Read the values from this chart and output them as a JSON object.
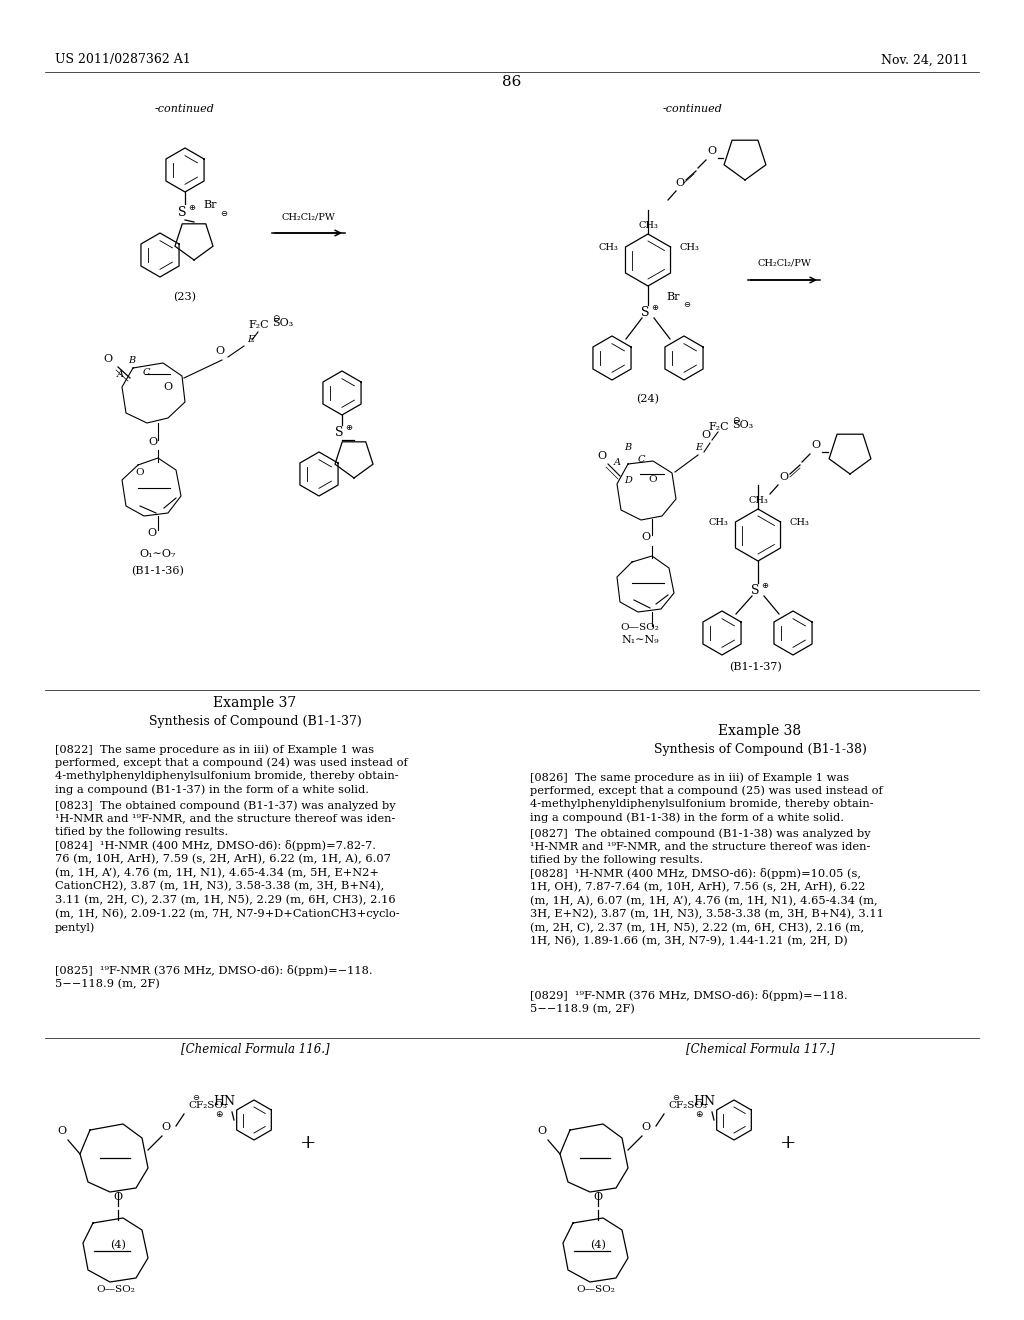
{
  "page_number": "86",
  "header_left": "US 2011/0287362 A1",
  "header_right": "Nov. 24, 2011",
  "background_color": "#ffffff",
  "text_color": "#000000",
  "para_0822": "[0822]  The same procedure as in iii) of Example 1 was\nperformed, except that a compound (24) was used instead of\n4-methylphenyldiphenylsulfonium bromide, thereby obtain-\ning a compound (B1-1-37) in the form of a white solid.",
  "para_0823": "[0823]  The obtained compound (B1-1-37) was analyzed by\n¹H-NMR and ¹⁹F-NMR, and the structure thereof was iden-\ntified by the following results.",
  "para_0824": "[0824]  ¹H-NMR (400 MHz, DMSO-d6): δ(ppm)=7.82-7.\n76 (m, 10H, ArH), 7.59 (s, 2H, ArH), 6.22 (m, 1H, A), 6.07\n(m, 1H, A’), 4.76 (m, 1H, N1), 4.65-4.34 (m, 5H, E+N2+\nCationCH2), 3.87 (m, 1H, N3), 3.58-3.38 (m, 3H, B+N4),\n3.11 (m, 2H, C), 2.37 (m, 1H, N5), 2.29 (m, 6H, CH3), 2.16\n(m, 1H, N6), 2.09-1.22 (m, 7H, N7-9+D+CationCH3+cyclo-\npentyl)",
  "para_0825": "[0825]  ¹⁹F-NMR (376 MHz, DMSO-d6): δ(ppm)=−118.\n5−−118.9 (m, 2F)",
  "para_0826": "[0826]  The same procedure as in iii) of Example 1 was\nperformed, except that a compound (25) was used instead of\n4-methylphenyldiphenylsulfonium bromide, thereby obtain-\ning a compound (B1-1-38) in the form of a white solid.",
  "para_0827": "[0827]  The obtained compound (B1-1-38) was analyzed by\n¹H-NMR and ¹⁹F-NMR, and the structure thereof was iden-\ntified by the following results.",
  "para_0828": "[0828]  ¹H-NMR (400 MHz, DMSO-d6): δ(ppm)=10.05 (s,\n1H, OH), 7.87-7.64 (m, 10H, ArH), 7.56 (s, 2H, ArH), 6.22\n(m, 1H, A), 6.07 (m, 1H, A’), 4.76 (m, 1H, N1), 4.65-4.34 (m,\n3H, E+N2), 3.87 (m, 1H, N3), 3.58-3.38 (m, 3H, B+N4), 3.11\n(m, 2H, C), 2.37 (m, 1H, N5), 2.22 (m, 6H, CH3), 2.16 (m,\n1H, N6), 1.89-1.66 (m, 3H, N7-9), 1.44-1.21 (m, 2H, D)",
  "para_0829": "[0829]  ¹⁹F-NMR (376 MHz, DMSO-d6): δ(ppm)=−118.\n5−−118.9 (m, 2F)",
  "chem_formula_116": "[Chemical Formula 116.]",
  "chem_formula_117": "[Chemical Formula 117.]"
}
